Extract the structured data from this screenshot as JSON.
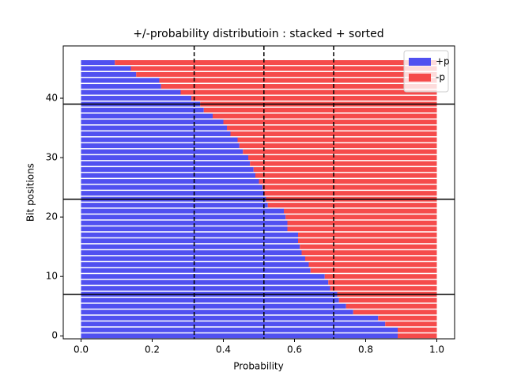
{
  "chart_data": {
    "type": "stacked_barh",
    "title": "+/-probability distributioin : stacked + sorted",
    "x_label": "Probability",
    "y_label": "Bit positions",
    "xlim": [
      -0.05,
      1.05
    ],
    "xticks": [
      {
        "value": 0,
        "label": "0.0"
      },
      {
        "value": 0.2,
        "label": "0.2"
      },
      {
        "value": 0.4,
        "label": "0.4"
      },
      {
        "value": 0.6,
        "label": "0.6"
      },
      {
        "value": 0.8,
        "label": "0.8"
      },
      {
        "value": 1,
        "label": "1.0"
      }
    ],
    "ylim": [
      -0.5,
      48.8
    ],
    "yticks": [
      0,
      10,
      20,
      30,
      40
    ],
    "legend": "upper right",
    "hlines": [
      7,
      23,
      39
    ],
    "vlines": [
      0.318,
      0.514,
      0.71
    ],
    "series": [
      {
        "name": "+p",
        "color": "#5050f0",
        "values": [
          0.89,
          0.89,
          0.855,
          0.835,
          0.765,
          0.745,
          0.725,
          0.72,
          0.7,
          0.695,
          0.685,
          0.645,
          0.64,
          0.63,
          0.62,
          0.615,
          0.61,
          0.61,
          0.58,
          0.58,
          0.575,
          0.57,
          0.525,
          0.52,
          0.515,
          0.51,
          0.5,
          0.49,
          0.485,
          0.475,
          0.47,
          0.455,
          0.445,
          0.44,
          0.42,
          0.41,
          0.4,
          0.37,
          0.345,
          0.335,
          0.31,
          0.28,
          0.225,
          0.22,
          0.155,
          0.14,
          0.095
        ]
      },
      {
        "name": "-p",
        "color": "#f54b4b",
        "values": [
          0.11,
          0.11,
          0.145,
          0.165,
          0.235,
          0.255,
          0.275,
          0.28,
          0.3,
          0.305,
          0.315,
          0.355,
          0.36,
          0.37,
          0.38,
          0.385,
          0.39,
          0.39,
          0.42,
          0.42,
          0.425,
          0.43,
          0.475,
          0.48,
          0.485,
          0.49,
          0.5,
          0.51,
          0.515,
          0.525,
          0.53,
          0.545,
          0.555,
          0.56,
          0.58,
          0.59,
          0.6,
          0.63,
          0.655,
          0.665,
          0.69,
          0.72,
          0.775,
          0.78,
          0.845,
          0.86,
          0.905
        ]
      }
    ]
  }
}
